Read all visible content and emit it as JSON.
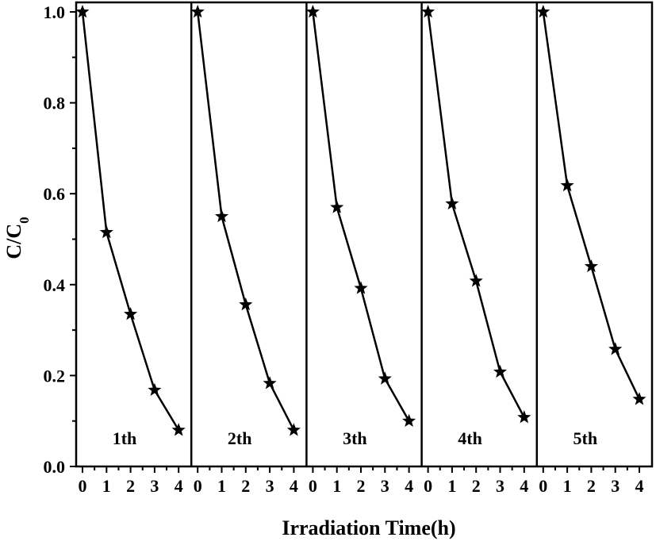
{
  "chart_data": {
    "type": "line",
    "title": "",
    "xlabel": "Irradiation Time(h)",
    "ylabel": {
      "main": "C/C",
      "subscript": "0"
    },
    "ylim": [
      0,
      1.0
    ],
    "xlim": [
      0,
      4
    ],
    "x_ticks": [
      0,
      1,
      2,
      3,
      4
    ],
    "y_ticks": [
      "0.0",
      "0.2",
      "0.4",
      "0.6",
      "0.8",
      "1.0"
    ],
    "marker": "star",
    "grid": false,
    "series": [
      {
        "name": "1th",
        "x": [
          0,
          1,
          2,
          3,
          4
        ],
        "values": [
          1.0,
          0.515,
          0.335,
          0.168,
          0.08
        ]
      },
      {
        "name": "2th",
        "x": [
          0,
          1,
          2,
          3,
          4
        ],
        "values": [
          1.0,
          0.55,
          0.356,
          0.183,
          0.08
        ]
      },
      {
        "name": "3th",
        "x": [
          0,
          1,
          2,
          3,
          4
        ],
        "values": [
          1.0,
          0.57,
          0.392,
          0.193,
          0.1
        ]
      },
      {
        "name": "4th",
        "x": [
          0,
          1,
          2,
          3,
          4
        ],
        "values": [
          1.0,
          0.578,
          0.408,
          0.208,
          0.108
        ]
      },
      {
        "name": "5th",
        "x": [
          0,
          1,
          2,
          3,
          4
        ],
        "values": [
          1.0,
          0.618,
          0.44,
          0.258,
          0.148
        ]
      }
    ]
  }
}
